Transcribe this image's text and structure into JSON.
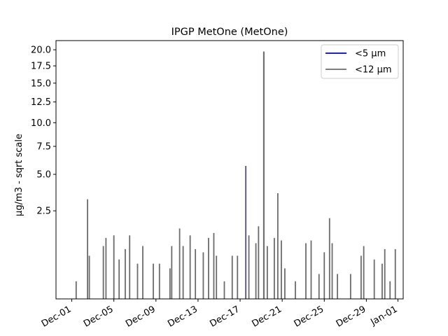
{
  "chart_data": {
    "type": "line",
    "title": "IPGP MetOne (MetOne)",
    "ylabel": "µg/m3 - sqrt scale",
    "xlabel": "",
    "yscale": "sqrt",
    "ylim": [
      0,
      21.5
    ],
    "xlim": [
      "2023-11-29T12:00",
      "2024-01-01T12:00"
    ],
    "yticks": [
      2.5,
      5.0,
      7.5,
      10.0,
      12.5,
      15.0,
      17.5,
      20.0
    ],
    "ytick_labels": [
      "2.5",
      "5.0",
      "7.5",
      "10.0",
      "12.5",
      "15.0",
      "17.5",
      "20.0"
    ],
    "xticks": [
      "2023-12-01",
      "2023-12-05",
      "2023-12-09",
      "2023-12-13",
      "2023-12-17",
      "2023-12-21",
      "2023-12-25",
      "2023-12-29",
      "2024-01-01"
    ],
    "xtick_labels": [
      "Dec-01",
      "Dec-05",
      "Dec-09",
      "Dec-13",
      "Dec-17",
      "Dec-21",
      "Dec-25",
      "Dec-29",
      "Jan-01"
    ],
    "legend": {
      "placement": "upper-right"
    },
    "grid": false,
    "series": [
      {
        "name": "<5 µm",
        "color": "#0000cc",
        "peaks": [
          [
            "2023-12-17T13:00",
            5.7
          ],
          [
            "2023-12-19T06:00",
            19.7
          ]
        ]
      },
      {
        "name": "<12 µm",
        "color": "#6b6b6b",
        "peaks": [
          [
            "2023-12-01T10:00",
            0.1
          ],
          [
            "2023-12-02T12:00",
            3.2
          ],
          [
            "2023-12-02T16:00",
            0.6
          ],
          [
            "2023-12-04T00:00",
            0.9
          ],
          [
            "2023-12-04T06:00",
            1.2
          ],
          [
            "2023-12-05T00:00",
            1.3
          ],
          [
            "2023-12-05T12:00",
            0.5
          ],
          [
            "2023-12-06T02:00",
            0.8
          ],
          [
            "2023-12-06T12:00",
            1.3
          ],
          [
            "2023-12-07T06:00",
            0.4
          ],
          [
            "2023-12-07T18:00",
            0.9
          ],
          [
            "2023-12-08T18:00",
            0.4
          ],
          [
            "2023-12-09T08:00",
            0.4
          ],
          [
            "2023-12-10T08:00",
            0.3
          ],
          [
            "2023-12-10T12:00",
            0.9
          ],
          [
            "2023-12-11T06:00",
            1.6
          ],
          [
            "2023-12-11T14:00",
            0.9
          ],
          [
            "2023-12-12T06:00",
            1.3
          ],
          [
            "2023-12-12T18:00",
            0.8
          ],
          [
            "2023-12-13T12:00",
            0.7
          ],
          [
            "2023-12-14T00:00",
            1.2
          ],
          [
            "2023-12-14T12:00",
            1.4
          ],
          [
            "2023-12-14T18:00",
            0.6
          ],
          [
            "2023-12-15T12:00",
            0.1
          ],
          [
            "2023-12-16T06:00",
            0.6
          ],
          [
            "2023-12-16T18:00",
            0.6
          ],
          [
            "2023-12-17T13:00",
            5.7
          ],
          [
            "2023-12-17T20:00",
            1.3
          ],
          [
            "2023-12-18T12:00",
            1.0
          ],
          [
            "2023-12-18T18:00",
            1.7
          ],
          [
            "2023-12-19T06:00",
            19.7
          ],
          [
            "2023-12-19T14:00",
            0.9
          ],
          [
            "2023-12-20T06:00",
            1.2
          ],
          [
            "2023-12-20T14:00",
            3.6
          ],
          [
            "2023-12-20T22:00",
            1.1
          ],
          [
            "2023-12-21T06:00",
            0.3
          ],
          [
            "2023-12-22T06:00",
            0.1
          ],
          [
            "2023-12-23T06:00",
            1.0
          ],
          [
            "2023-12-23T18:00",
            1.1
          ],
          [
            "2023-12-24T12:00",
            0.2
          ],
          [
            "2023-12-25T00:00",
            0.7
          ],
          [
            "2023-12-25T12:00",
            2.1
          ],
          [
            "2023-12-25T18:00",
            1.0
          ],
          [
            "2023-12-26T06:00",
            0.2
          ],
          [
            "2023-12-27T12:00",
            0.2
          ],
          [
            "2023-12-28T12:00",
            0.6
          ],
          [
            "2023-12-28T18:00",
            0.9
          ],
          [
            "2023-12-29T18:00",
            0.5
          ],
          [
            "2023-12-30T12:00",
            0.4
          ],
          [
            "2023-12-30T18:00",
            0.8
          ],
          [
            "2023-12-31T06:00",
            0.1
          ],
          [
            "2023-12-31T18:00",
            0.8
          ]
        ]
      }
    ]
  }
}
